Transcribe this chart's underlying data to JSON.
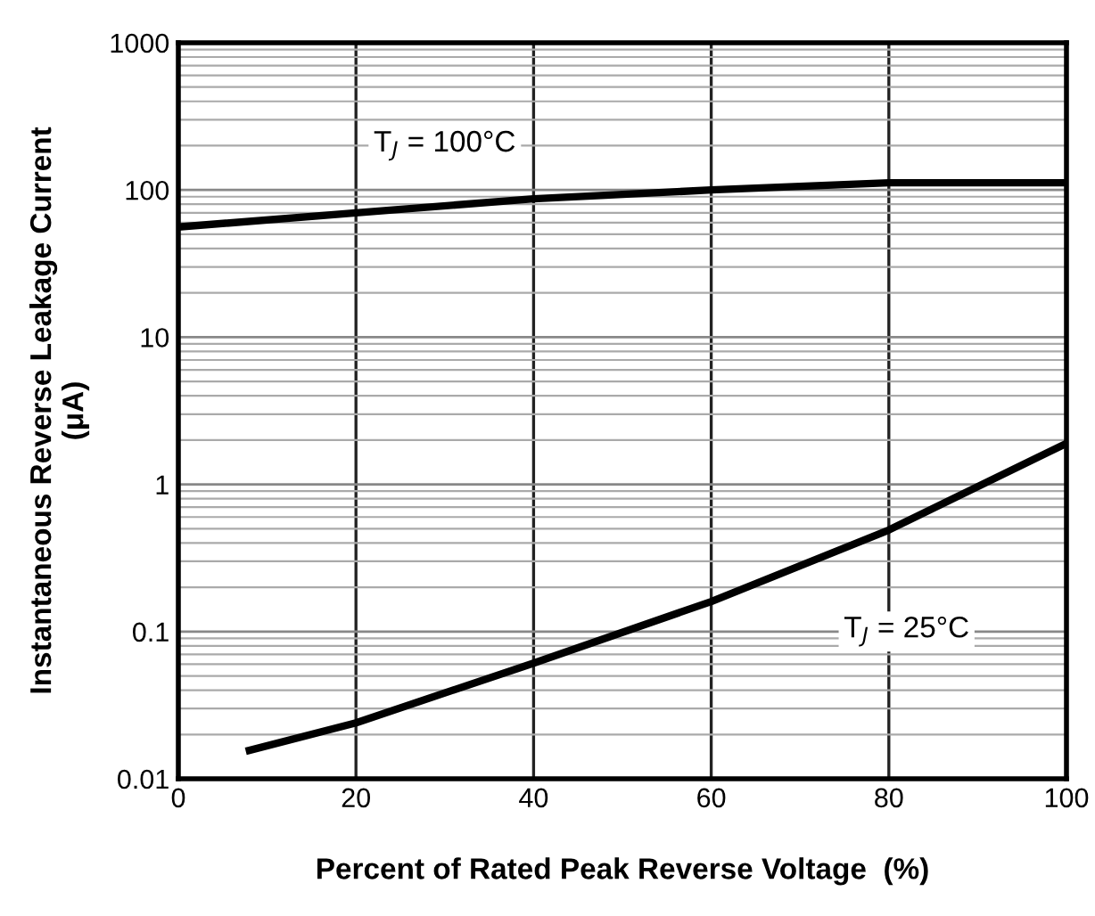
{
  "chart_data": {
    "type": "line",
    "xlabel": "Percent of Rated Peak Reverse Voltage  (%)",
    "ylabel": "Instantaneous Reverse Leakage Current\n(μA)",
    "series": [
      {
        "name": "T$_{J}$ = 100°C",
        "color": "#000000",
        "x": [
          0,
          20,
          40,
          60,
          80,
          100
        ],
        "values": [
          56,
          70,
          87,
          100,
          112,
          112
        ]
      },
      {
        "name": "T$_{J}$ = 25°C",
        "color": "#000000",
        "x": [
          8,
          20,
          40,
          60,
          80,
          100
        ],
        "values": [
          0.0156,
          0.024,
          0.061,
          0.16,
          0.49,
          1.9
        ]
      }
    ],
    "log": true,
    "xlim": [
      0,
      100
    ],
    "ylim": [
      0.01,
      1000
    ],
    "xticks": [
      0,
      20,
      40,
      60,
      80,
      100
    ],
    "yticks": [
      0.01,
      0.1,
      1,
      10,
      100,
      1000
    ],
    "grid": true,
    "legend": false
  }
}
